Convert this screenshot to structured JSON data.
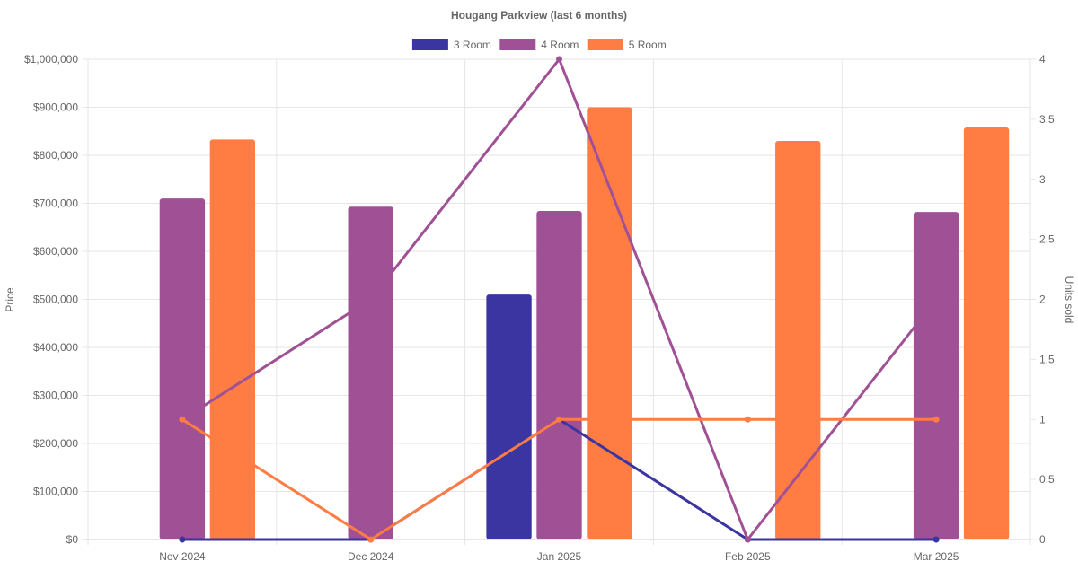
{
  "chart_data": {
    "type": "bar",
    "title": "Hougang Parkview (last 6 months)",
    "categories": [
      "Nov 2024",
      "Dec 2024",
      "Jan 2025",
      "Feb 2025",
      "Mar 2025"
    ],
    "y_left": {
      "label": "Price",
      "ylim": [
        0,
        1000000
      ],
      "ticks": [
        "$0",
        "$100,000",
        "$200,000",
        "$300,000",
        "$400,000",
        "$500,000",
        "$600,000",
        "$700,000",
        "$800,000",
        "$900,000",
        "$1,000,000"
      ]
    },
    "y_right": {
      "label": "Units sold",
      "ylim": [
        0,
        4
      ],
      "ticks": [
        "0",
        "0.5",
        "1",
        "1.5",
        "2",
        "2.5",
        "3",
        "3.5",
        "4"
      ]
    },
    "legend_position": "top-center",
    "grid": true,
    "series": [
      {
        "name": "3 Room",
        "color": "#3a35a0",
        "price": [
          null,
          null,
          510000,
          null,
          null
        ],
        "units": [
          0,
          0,
          1,
          0,
          0
        ]
      },
      {
        "name": "4 Room",
        "color": "#a05195",
        "price": [
          710000,
          693000,
          684000,
          null,
          682000
        ],
        "units": [
          1,
          2,
          4,
          0,
          2
        ]
      },
      {
        "name": "5 Room",
        "color": "#ff7c43",
        "price": [
          833000,
          null,
          900000,
          830000,
          858000
        ],
        "units": [
          1,
          0,
          1,
          1,
          1
        ]
      }
    ]
  }
}
